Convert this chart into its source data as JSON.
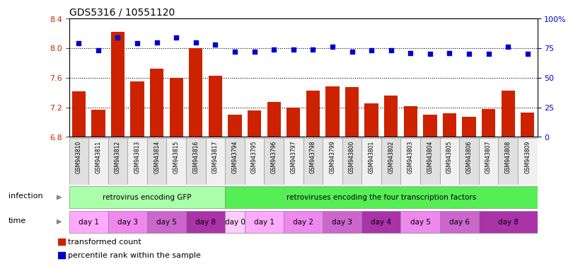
{
  "title": "GDS5316 / 10551120",
  "samples": [
    "GSM943810",
    "GSM943811",
    "GSM943812",
    "GSM943813",
    "GSM943814",
    "GSM943815",
    "GSM943816",
    "GSM943817",
    "GSM943794",
    "GSM943795",
    "GSM943796",
    "GSM943797",
    "GSM943798",
    "GSM943799",
    "GSM943800",
    "GSM943801",
    "GSM943802",
    "GSM943803",
    "GSM943804",
    "GSM943805",
    "GSM943806",
    "GSM943807",
    "GSM943808",
    "GSM943809"
  ],
  "bar_values": [
    7.42,
    7.17,
    8.22,
    7.55,
    7.72,
    7.6,
    8.0,
    7.63,
    7.1,
    7.16,
    7.27,
    7.2,
    7.43,
    7.48,
    7.47,
    7.25,
    7.36,
    7.22,
    7.1,
    7.12,
    7.07,
    7.18,
    7.43,
    7.13
  ],
  "dot_values": [
    79,
    73,
    84,
    79,
    80,
    84,
    80,
    78,
    72,
    72,
    74,
    74,
    74,
    76,
    72,
    73,
    73,
    71,
    70,
    71,
    70,
    70,
    76,
    70
  ],
  "ylim_left": [
    6.8,
    8.4
  ],
  "ylim_right": [
    0,
    100
  ],
  "yticks_left": [
    6.8,
    7.2,
    7.6,
    8.0,
    8.4
  ],
  "yticks_right": [
    0,
    25,
    50,
    75,
    100
  ],
  "bar_color": "#cc2200",
  "dot_color": "#0000cc",
  "bar_bottom": 6.8,
  "infection_groups": [
    {
      "label": "retrovirus encoding GFP",
      "start": 0,
      "end": 8,
      "color": "#aaffaa"
    },
    {
      "label": "retroviruses encoding the four transcription factors",
      "start": 8,
      "end": 24,
      "color": "#55ee55"
    }
  ],
  "time_groups": [
    {
      "label": "day 1",
      "start": 0,
      "end": 2
    },
    {
      "label": "day 3",
      "start": 2,
      "end": 4
    },
    {
      "label": "day 5",
      "start": 4,
      "end": 6
    },
    {
      "label": "day 8",
      "start": 6,
      "end": 8
    },
    {
      "label": "day 0",
      "start": 8,
      "end": 9
    },
    {
      "label": "day 1",
      "start": 9,
      "end": 11
    },
    {
      "label": "day 2",
      "start": 11,
      "end": 13
    },
    {
      "label": "day 3",
      "start": 13,
      "end": 15
    },
    {
      "label": "day 4",
      "start": 15,
      "end": 17
    },
    {
      "label": "day 5",
      "start": 17,
      "end": 19
    },
    {
      "label": "day 6",
      "start": 19,
      "end": 21
    },
    {
      "label": "day 8",
      "start": 21,
      "end": 24
    }
  ],
  "time_colors": [
    "#ffaaff",
    "#ee88ee",
    "#cc66cc",
    "#aa33aa",
    "#ffccff",
    "#ffaaff",
    "#ee88ee",
    "#cc66cc",
    "#aa33aa",
    "#ee88ee",
    "#cc66cc",
    "#aa33aa"
  ],
  "legend_bar_label": "transformed count",
  "legend_dot_label": "percentile rank within the sample",
  "bg_color": "#ffffff",
  "tick_label_color_left": "#cc2200",
  "tick_label_color_right": "#0000cc",
  "grid_dotted_vals": [
    7.2,
    7.6,
    8.0
  ],
  "left_labels": [
    "infection",
    "time"
  ],
  "arrow_color": "#888888"
}
